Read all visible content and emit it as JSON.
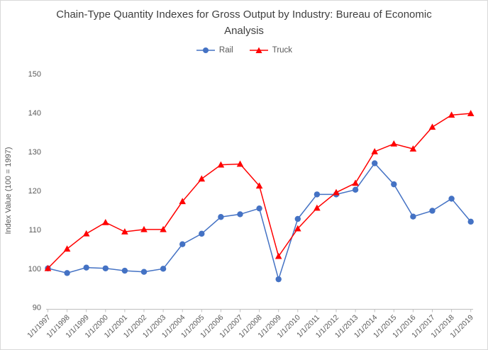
{
  "chart_data": {
    "type": "line",
    "title": "Chain-Type Quantity Indexes for Gross Output by Industry: Bureau of Economic Analysis",
    "xlabel": "",
    "ylabel": "Index Value (100 = 1997)",
    "ylim": [
      90,
      150
    ],
    "y_ticks": [
      90,
      100,
      110,
      120,
      130,
      140,
      150
    ],
    "grid": false,
    "legend_position": "top-center",
    "axis_color": "#bfbfbf",
    "tick_label_color": "#595959",
    "categories": [
      "1/1/1997",
      "1/1/1998",
      "1/1/1999",
      "1/1/2000",
      "1/1/2001",
      "1/1/2002",
      "1/1/2003",
      "1/1/2004",
      "1/1/2005",
      "1/1/2006",
      "1/1/2007",
      "1/1/2008",
      "1/1/2009",
      "1/1/2010",
      "1/1/2011",
      "1/1/2012",
      "1/1/2013",
      "1/1/2014",
      "1/1/2015",
      "1/1/2016",
      "1/1/2017",
      "1/1/2018",
      "1/1/2019"
    ],
    "series": [
      {
        "name": "Rail",
        "color": "#4472c4",
        "marker": "circle",
        "values": [
          100,
          98.8,
          100.2,
          100,
          99.4,
          99.1,
          99.9,
          106.2,
          108.9,
          113.2,
          113.9,
          115.4,
          97.2,
          112.7,
          119,
          119,
          120.2,
          127,
          121.6,
          113.3,
          114.8,
          117.9,
          112
        ]
      },
      {
        "name": "Truck",
        "color": "#ff0000",
        "marker": "triangle",
        "values": [
          100,
          105,
          108.9,
          111.8,
          109.4,
          110,
          110,
          117.2,
          123,
          126.6,
          126.8,
          121.2,
          103.1,
          110.2,
          115.5,
          119.5,
          121.9,
          130,
          132,
          130.7,
          136.3,
          139.4,
          139.8
        ]
      }
    ]
  }
}
